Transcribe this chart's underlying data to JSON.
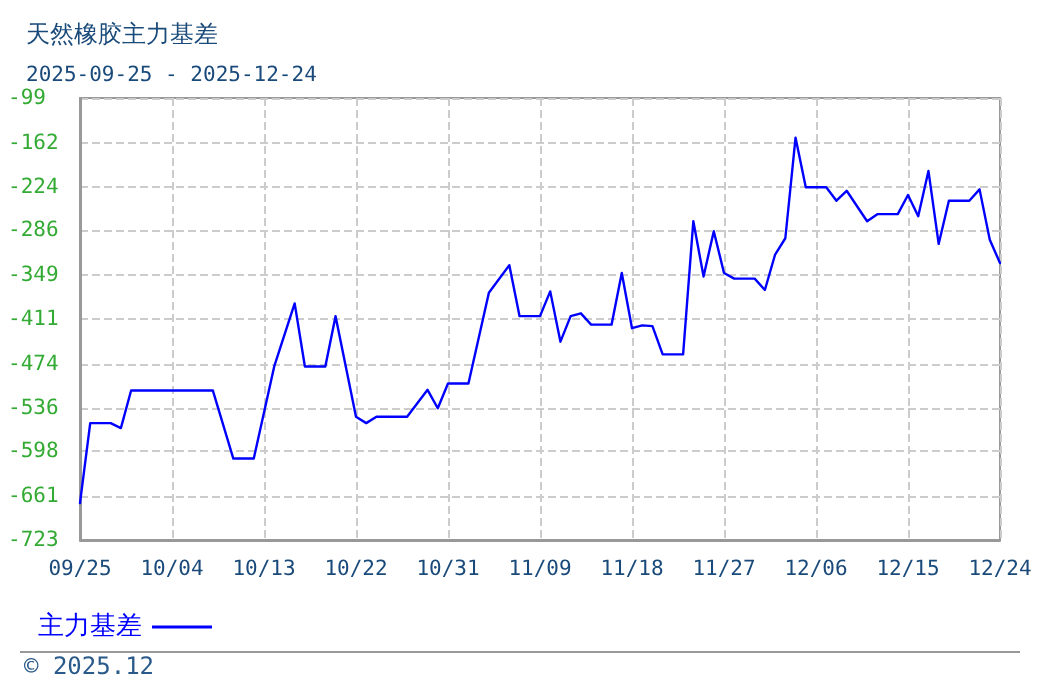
{
  "chart_data": {
    "type": "line",
    "title": "天然橡胶主力基差",
    "subtitle": "2025-09-25 - 2025-12-24",
    "x": [
      "2025-09-25",
      "2025-09-26",
      "2025-09-28",
      "2025-09-29",
      "2025-09-30",
      "2025-10-08",
      "2025-10-10",
      "2025-10-12",
      "2025-10-14",
      "2025-10-16",
      "2025-10-17",
      "2025-10-19",
      "2025-10-20",
      "2025-10-22",
      "2025-10-23",
      "2025-10-24",
      "2025-10-27",
      "2025-10-29",
      "2025-10-30",
      "2025-10-31",
      "2025-11-02",
      "2025-11-04",
      "2025-11-06",
      "2025-11-07",
      "2025-11-09",
      "2025-11-10",
      "2025-11-11",
      "2025-11-12",
      "2025-11-13",
      "2025-11-14",
      "2025-11-16",
      "2025-11-17",
      "2025-11-18",
      "2025-11-19",
      "2025-11-20",
      "2025-11-21",
      "2025-11-23",
      "2025-11-24",
      "2025-11-25",
      "2025-11-26",
      "2025-11-27",
      "2025-11-28",
      "2025-11-30",
      "2025-12-01",
      "2025-12-02",
      "2025-12-03",
      "2025-12-04",
      "2025-12-05",
      "2025-12-07",
      "2025-12-08",
      "2025-12-09",
      "2025-12-11",
      "2025-12-12",
      "2025-12-14",
      "2025-12-15",
      "2025-12-16",
      "2025-12-17",
      "2025-12-18",
      "2025-12-19",
      "2025-12-21",
      "2025-12-22",
      "2025-12-23",
      "2025-12-24"
    ],
    "series": [
      {
        "name": "主力基差",
        "color": "#0000ff",
        "values": [
          -671,
          -558,
          -558,
          -565,
          -512,
          -512,
          -608,
          -608,
          -478,
          -389,
          -478,
          -478,
          -407,
          -549,
          -558,
          -549,
          -549,
          -511,
          -537,
          -502,
          -502,
          -374,
          -335,
          -407,
          -407,
          -372,
          -443,
          -407,
          -403,
          -419,
          -419,
          -346,
          -424,
          -420,
          -421,
          -461,
          -461,
          -273,
          -351,
          -287,
          -346,
          -354,
          -354,
          -370,
          -320,
          -297,
          -155,
          -225,
          -225,
          -244,
          -230,
          -273,
          -263,
          -263,
          -236,
          -266,
          -202,
          -305,
          -244,
          -244,
          -228,
          -299,
          -332
        ]
      }
    ],
    "xlim": [
      "2025-09-25",
      "2025-12-24"
    ],
    "xticks": [
      {
        "value": "2025-09-25",
        "label": "09/25"
      },
      {
        "value": "2025-10-04",
        "label": "10/04"
      },
      {
        "value": "2025-10-13",
        "label": "10/13"
      },
      {
        "value": "2025-10-22",
        "label": "10/22"
      },
      {
        "value": "2025-10-31",
        "label": "10/31"
      },
      {
        "value": "2025-11-09",
        "label": "11/09"
      },
      {
        "value": "2025-11-18",
        "label": "11/18"
      },
      {
        "value": "2025-11-27",
        "label": "11/27"
      },
      {
        "value": "2025-12-06",
        "label": "12/06"
      },
      {
        "value": "2025-12-15",
        "label": "12/15"
      },
      {
        "value": "2025-12-24",
        "label": "12/24"
      }
    ],
    "ylim": [
      -723,
      -99
    ],
    "yticks": [
      -723,
      -661,
      -598,
      -536,
      -474,
      -411,
      -349,
      -286,
      -224,
      -162,
      -99
    ],
    "grid": true,
    "legend": "bottom left",
    "marker": "none",
    "line_style": "solid",
    "annotations": [
      "© 2025.12"
    ]
  }
}
